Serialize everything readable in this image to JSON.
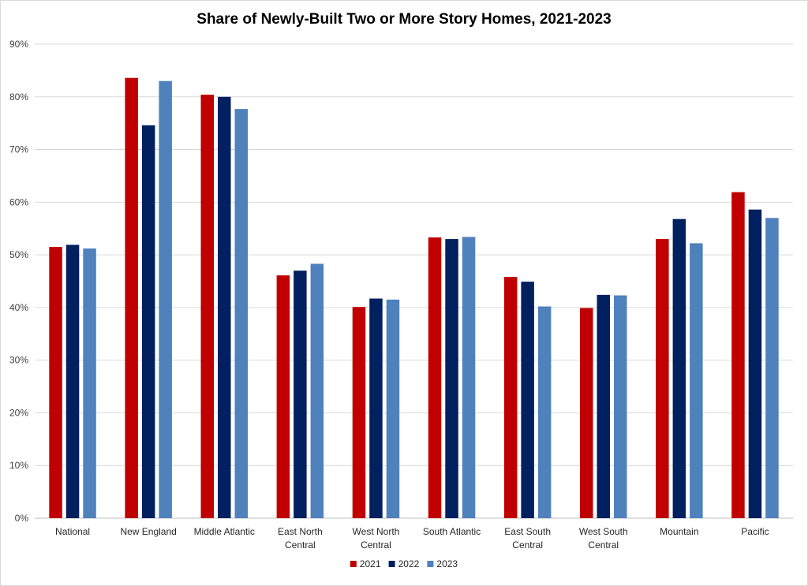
{
  "chart_data": {
    "type": "bar",
    "title": "Share of Newly-Built Two or More Story Homes, 2021-2023",
    "xlabel": "",
    "ylabel": "",
    "ylim": [
      0,
      90
    ],
    "yticks": [
      "0%",
      "10%",
      "20%",
      "30%",
      "40%",
      "50%",
      "60%",
      "70%",
      "80%",
      "90%"
    ],
    "categories": [
      [
        "National"
      ],
      [
        "New England"
      ],
      [
        "Middle Atlantic"
      ],
      [
        "East North",
        "Central"
      ],
      [
        "West North",
        "Central"
      ],
      [
        "South Atlantic"
      ],
      [
        "East South",
        "Central"
      ],
      [
        "West South",
        "Central"
      ],
      [
        "Mountain"
      ],
      [
        "Pacific"
      ]
    ],
    "series": [
      {
        "name": "2021",
        "color": "#c00000",
        "values": [
          51.5,
          83.6,
          80.4,
          46.1,
          40.1,
          53.3,
          45.8,
          39.9,
          53.0,
          61.9
        ]
      },
      {
        "name": "2022",
        "color": "#002060",
        "values": [
          51.9,
          74.6,
          80.0,
          47.0,
          41.7,
          53.0,
          44.9,
          42.4,
          56.8,
          58.6
        ]
      },
      {
        "name": "2023",
        "color": "#4f81bd",
        "values": [
          51.2,
          83.0,
          77.7,
          48.3,
          41.5,
          53.4,
          40.2,
          42.3,
          52.2,
          57.0
        ]
      }
    ],
    "grid": true,
    "legend": "bottom"
  }
}
